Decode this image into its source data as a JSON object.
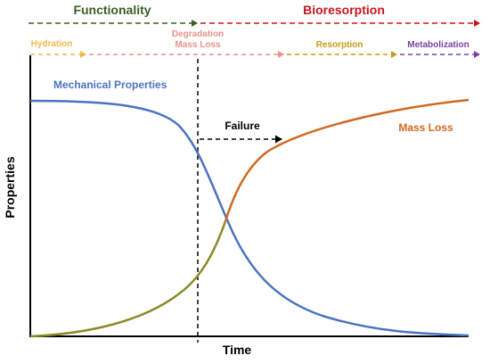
{
  "phases": {
    "functionality": {
      "label": "Functionality",
      "color": "#3a5f22"
    },
    "bioresorption": {
      "label": "Bioresorption",
      "color": "#c8161d"
    }
  },
  "stages": {
    "hydration": {
      "label": "Hydration",
      "color": "#f2b84b"
    },
    "degradation": {
      "line1": "Degradation",
      "line2": "Mass Loss",
      "color": "#e8938a"
    },
    "resorption": {
      "label": "Resorption",
      "color": "#c89a17"
    },
    "metabolization": {
      "label": "Metabolization",
      "color": "#7a3fa3"
    }
  },
  "curves": {
    "mechanical": {
      "label": "Mechanical Properties",
      "color": "#4a74c0"
    },
    "mass_loss": {
      "label": "Mass Loss",
      "color": "#d0681f"
    }
  },
  "failure": {
    "label": "Failure"
  },
  "axes": {
    "x_label": "Time",
    "y_label": "Properties"
  },
  "colors": {
    "axis": "#000000",
    "arrow": "#000000",
    "crossing": "#8a8a2a"
  }
}
